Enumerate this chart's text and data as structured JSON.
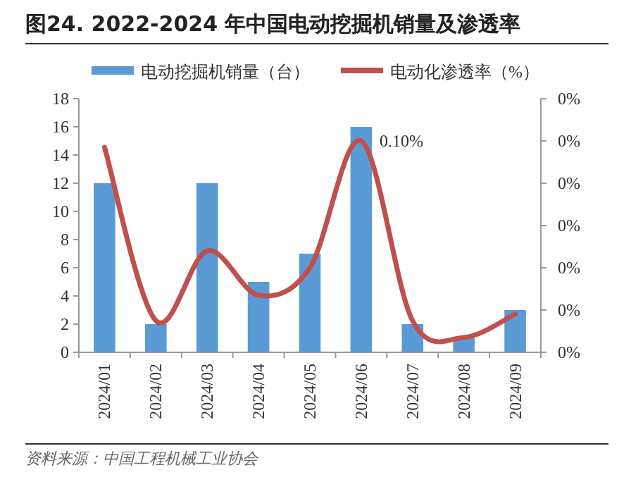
{
  "chart_data": {
    "type": "bar",
    "title": "图24. 2022-2024 年中国电动挖掘机销量及渗透率",
    "categories": [
      "2024/01",
      "2024/02",
      "2024/03",
      "2024/04",
      "2024/05",
      "2024/06",
      "2024/07",
      "2024/08",
      "2024/09"
    ],
    "series": [
      {
        "name": "电动挖掘机销量（台）",
        "color": "#5b9bd5",
        "values": [
          12,
          2,
          12,
          5,
          7,
          16,
          2,
          1,
          3
        ]
      },
      {
        "name": "电动化渗透率（%）",
        "color": "#c0504d",
        "type": "line",
        "axis": "y2",
        "values": [
          0.097,
          0.015,
          0.048,
          0.027,
          0.04,
          0.1,
          0.015,
          0.007,
          0.018
        ]
      }
    ],
    "ylim": [
      0,
      18
    ],
    "yticks": [
      0,
      2,
      4,
      6,
      8,
      10,
      12,
      14,
      16,
      18
    ],
    "y2lim": [
      0,
      0.12
    ],
    "y2ticks": [
      {
        "value": 0,
        "label": "0%"
      },
      {
        "value": 0.02,
        "label": "0%"
      },
      {
        "value": 0.04,
        "label": "0%"
      },
      {
        "value": 0.06,
        "label": "0%"
      },
      {
        "value": 0.08,
        "label": "0%"
      },
      {
        "value": 0.1,
        "label": "0%"
      },
      {
        "value": 0.12,
        "label": "0%"
      }
    ],
    "legend": "top",
    "annotations": [
      "0.10%",
      "资料来源：中国工程机械工业协会"
    ]
  }
}
